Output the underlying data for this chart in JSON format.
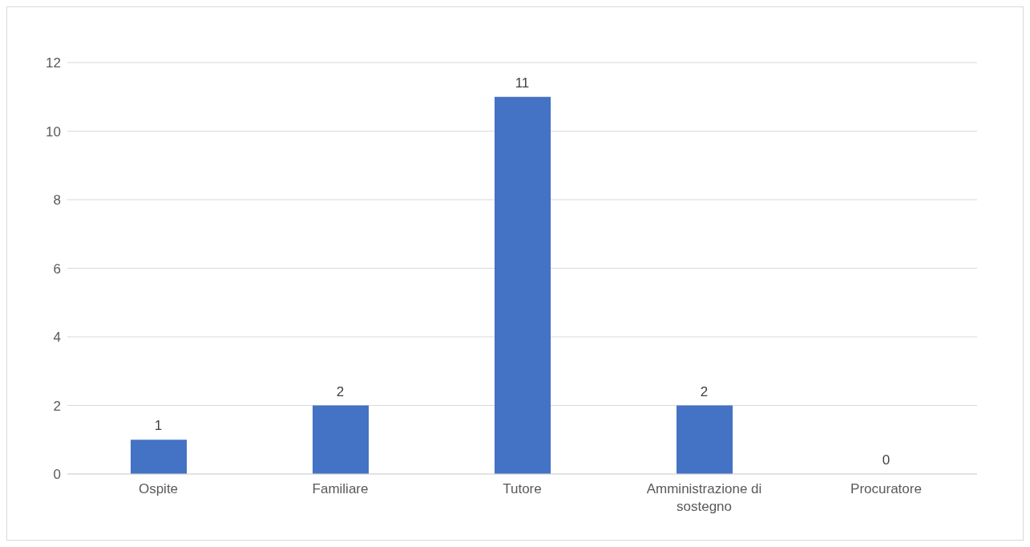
{
  "chart_data": {
    "type": "bar",
    "categories": [
      "Ospite",
      "Familiare",
      "Tutore",
      "Amministrazione di sostegno",
      "Procuratore"
    ],
    "values": [
      1,
      2,
      11,
      2,
      0
    ],
    "color": "#4472c4",
    "ylim": [
      0,
      12
    ],
    "yticks": [
      0,
      2,
      4,
      6,
      8,
      10,
      12
    ],
    "grid": "y",
    "data_labels": true
  }
}
